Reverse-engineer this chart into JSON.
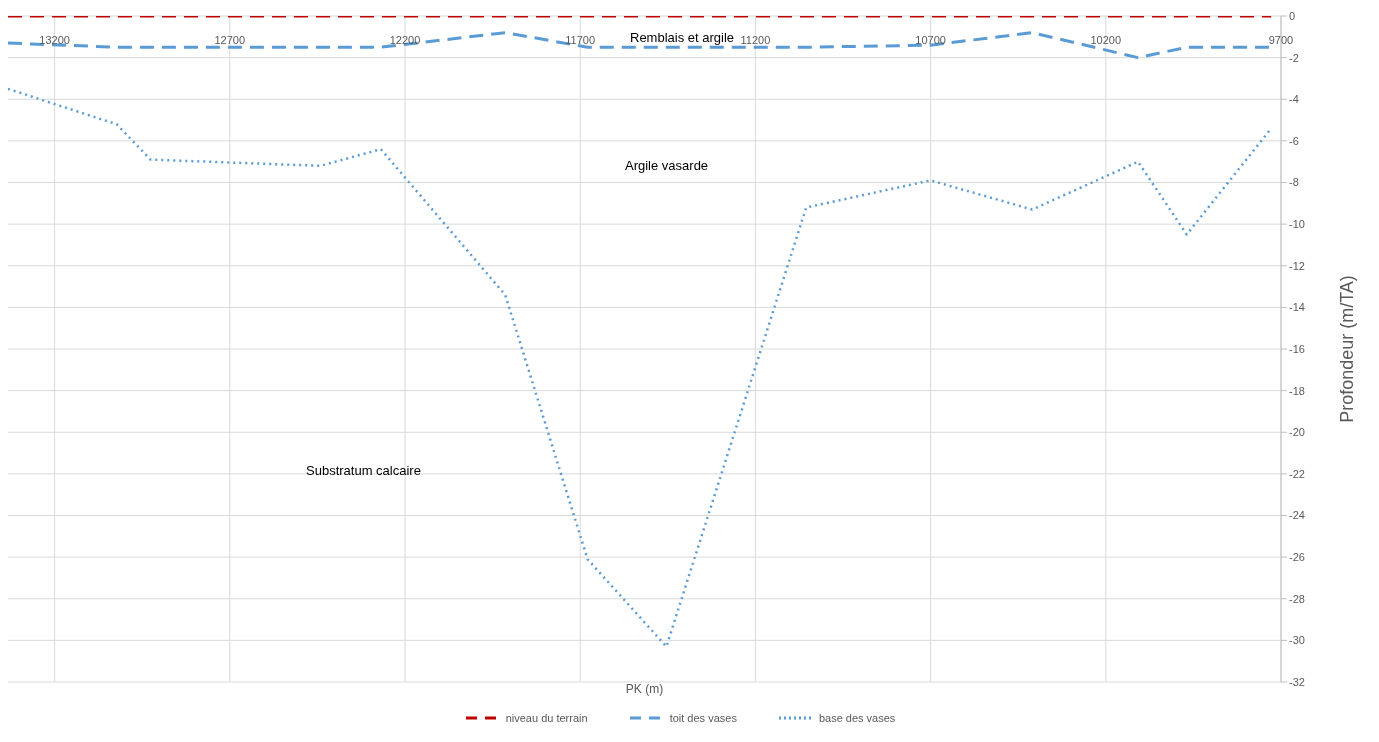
{
  "chart_data": {
    "type": "line",
    "xlabel": "PK (m)",
    "ylabel": "Profondeur (m/TA)",
    "annotations": [
      "Remblais et argile",
      "Argile vasarde",
      "Substratum calcaire"
    ],
    "x": [
      13333,
      13023,
      12926,
      12441,
      12269,
      11914,
      11679,
      11454,
      11055,
      10700,
      10410,
      10108,
      9969,
      9728
    ],
    "series": [
      {
        "name": "niveau du terrain",
        "color": "#c00000",
        "line_style": "dashed",
        "values": [
          0,
          0,
          0,
          0,
          0,
          0,
          0,
          0,
          0,
          0,
          0,
          0,
          0,
          0
        ]
      },
      {
        "name": "toit des vases",
        "color": "#5b9bd5",
        "line_style": "dashed",
        "values": [
          -1.3,
          -1.5,
          -1.5,
          -1.5,
          -1.5,
          -0.8,
          -1.5,
          -1.5,
          -1.5,
          -1.4,
          -0.8,
          -2.0,
          -1.5,
          -1.5
        ]
      },
      {
        "name": "base des vases",
        "color": "#5b9bd5",
        "line_style": "dotted",
        "values": [
          -3.5,
          -5.2,
          -6.9,
          -7.2,
          -6.4,
          -13.4,
          -26.1,
          -30.3,
          -9.2,
          -7.9,
          -9.3,
          -7.0,
          -10.5,
          -5.4
        ]
      }
    ],
    "xlim": [
      13333,
      9700
    ],
    "xticks": [
      13200,
      12700,
      12200,
      11700,
      11200,
      10700,
      10200,
      9700
    ],
    "ylim": [
      -32,
      0
    ],
    "yticks": [
      0,
      -2,
      -4,
      -6,
      -8,
      -10,
      -12,
      -14,
      -16,
      -18,
      -20,
      -22,
      -24,
      -26,
      -28,
      -30,
      -32
    ],
    "grid": true,
    "legend": "bottom",
    "marker": "none"
  }
}
